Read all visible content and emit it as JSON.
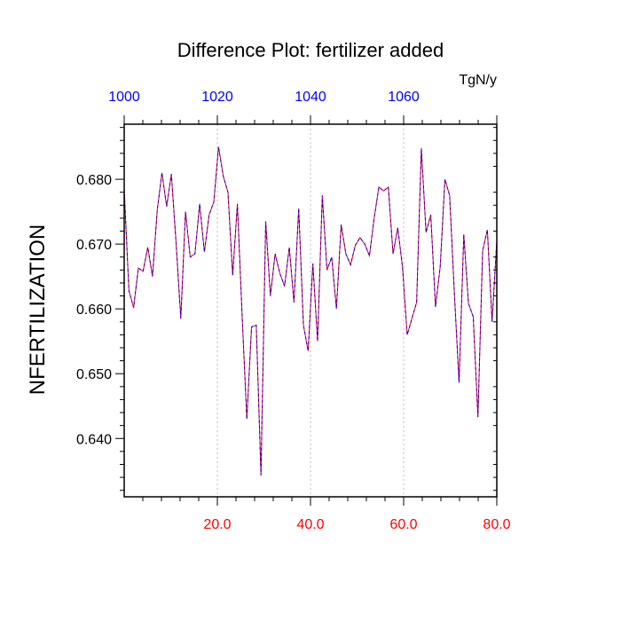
{
  "chart_data": {
    "type": "line",
    "title": "Difference Plot: fertilizer added",
    "units": "TgN/y",
    "ylabel": "NFERTILIZATION",
    "xlabel": "",
    "xlim": [
      0,
      80
    ],
    "ylim": [
      0.631,
      0.6885
    ],
    "x_ticks": [
      20,
      40,
      60,
      80
    ],
    "x_tick_labels": [
      "20.0",
      "40.0",
      "60.0",
      "80.0"
    ],
    "x_top_ticks": [
      0,
      20,
      40,
      60
    ],
    "x_top_tick_labels": [
      "1000",
      "1020",
      "1040",
      "1060"
    ],
    "y_ticks": [
      0.64,
      0.65,
      0.66,
      0.67,
      0.68
    ],
    "y_tick_labels": [
      "0.640",
      "0.650",
      "0.660",
      "0.670",
      "0.680"
    ],
    "grid": "vertical dotted at labeled x ticks",
    "colors": {
      "series_a": "#ff0000",
      "series_b": "#0000ff",
      "bottom_axis_labels": "#ff0000",
      "top_axis_labels": "#0000ff",
      "grid": "#bbbbbb"
    },
    "series": [
      {
        "values": [
          0.6785,
          0.6628,
          0.6602,
          0.6663,
          0.6658,
          0.6695,
          0.665,
          0.6752,
          0.681,
          0.6758,
          0.6808,
          0.6702,
          0.6585,
          0.675,
          0.668,
          0.6685,
          0.6762,
          0.6688,
          0.6745,
          0.6765,
          0.685,
          0.6805,
          0.678,
          0.6652,
          0.6762,
          0.659,
          0.643,
          0.6572,
          0.6575,
          0.6343,
          0.6735,
          0.662,
          0.6685,
          0.6655,
          0.6635,
          0.6695,
          0.661,
          0.6755,
          0.6575,
          0.6535,
          0.667,
          0.655,
          0.6775,
          0.666,
          0.668,
          0.66,
          0.673,
          0.6685,
          0.6668,
          0.6698,
          0.671,
          0.67,
          0.6682,
          0.674,
          0.6788,
          0.6782,
          0.6788,
          0.6685,
          0.6725,
          0.6665,
          0.656,
          0.6585,
          0.661,
          0.6848,
          0.6718,
          0.6745,
          0.6603,
          0.6665,
          0.68,
          0.6775,
          0.6625,
          0.6486,
          0.6715,
          0.6608,
          0.6588,
          0.6433,
          0.669,
          0.6722,
          0.658,
          0.6705
        ]
      }
    ]
  }
}
